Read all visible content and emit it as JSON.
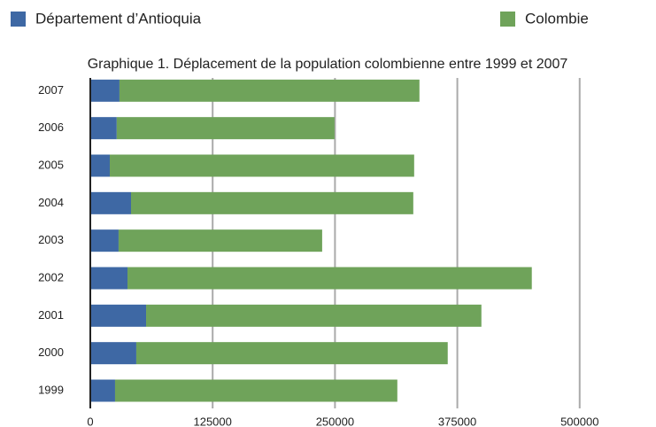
{
  "chart_data": {
    "type": "stacked-barh",
    "title": "Graphique 1. Déplacement de la population colombienne entre 1999 et 2007",
    "categories": [
      "1999",
      "2000",
      "2001",
      "2002",
      "2003",
      "2004",
      "2005",
      "2006",
      "2007"
    ],
    "series": [
      {
        "name": "Département d’Antioquia",
        "color": "#3e68a4",
        "values": [
          25300,
          47000,
          57000,
          38000,
          28900,
          41600,
          19900,
          27000,
          29800
        ]
      },
      {
        "name": "Colombie",
        "color": "#6fa35a",
        "values": [
          288400,
          318200,
          342600,
          413100,
          208000,
          288400,
          311000,
          222500,
          306500
        ]
      }
    ],
    "xlim": [
      0,
      540000
    ],
    "xticks": [
      0,
      125000,
      250000,
      375000,
      500000
    ],
    "grid": true
  }
}
